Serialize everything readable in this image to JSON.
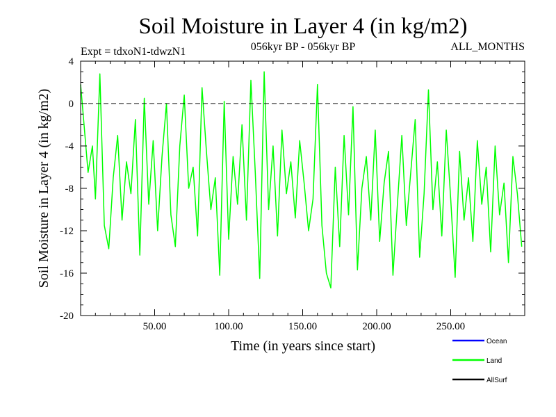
{
  "chart_data": {
    "type": "line",
    "title": "Soil Moisture in Layer 4 (in kg/m2)",
    "subtitle_left": "Expt = tdxoN1-tdwzN1",
    "subtitle_center": "056kyr BP - 056kyr BP",
    "subtitle_right": "ALL_MONTHS",
    "xlabel": "Time (in years since start)",
    "ylabel": "Soil Moisture in Layer 4 (in kg/m2)",
    "xlim": [
      0,
      300
    ],
    "ylim": [
      -20,
      4
    ],
    "x_ticks": [
      50,
      100,
      150,
      200,
      250
    ],
    "x_tick_labels": [
      "50.00",
      "100.00",
      "150.00",
      "200.00",
      "250.00"
    ],
    "y_ticks": [
      4,
      0,
      -4,
      -8,
      -12,
      -16,
      -20
    ],
    "y_tick_labels": [
      "4",
      "0",
      "-4",
      "-8",
      "-12",
      "-16",
      "-20"
    ],
    "reference_line": 0,
    "series": [
      {
        "name": "Ocean",
        "color": "#0000ff",
        "values": []
      },
      {
        "name": "Land",
        "color": "#00ff00",
        "x": [
          0,
          2,
          5,
          8,
          10,
          13,
          16,
          19,
          22,
          25,
          28,
          31,
          34,
          37,
          40,
          43,
          46,
          49,
          52,
          55,
          58,
          61,
          64,
          67,
          70,
          73,
          76,
          79,
          82,
          85,
          88,
          91,
          94,
          97,
          100,
          103,
          106,
          109,
          112,
          115,
          118,
          121,
          124,
          127,
          130,
          133,
          136,
          139,
          142,
          145,
          148,
          151,
          154,
          157,
          160,
          163,
          166,
          169,
          172,
          175,
          178,
          181,
          184,
          187,
          190,
          193,
          196,
          199,
          202,
          205,
          208,
          211,
          214,
          217,
          220,
          223,
          226,
          229,
          232,
          235,
          238,
          241,
          244,
          247,
          250,
          253,
          256,
          259,
          262,
          265,
          268,
          271,
          274,
          277,
          280,
          283,
          286,
          289,
          292,
          295,
          298
        ],
        "values": [
          1.8,
          -1.5,
          -6.5,
          -4.0,
          -9.0,
          2.8,
          -11.5,
          -13.7,
          -7.0,
          -3.0,
          -11.0,
          -5.5,
          -8.5,
          -1.5,
          -14.3,
          0.5,
          -9.5,
          -3.5,
          -12.0,
          -5.0,
          0.0,
          -10.5,
          -13.5,
          -4.0,
          0.8,
          -8.0,
          -6.0,
          -12.5,
          1.5,
          -4.5,
          -10.0,
          -7.0,
          -16.2,
          0.2,
          -12.8,
          -5.0,
          -9.5,
          -2.0,
          -11.0,
          2.2,
          -6.5,
          -16.5,
          3.0,
          -10.0,
          -4.0,
          -12.5,
          -2.5,
          -8.5,
          -5.5,
          -10.8,
          -3.5,
          -7.5,
          -12.0,
          -9.0,
          1.8,
          -11.5,
          -16.0,
          -17.4,
          -6.0,
          -13.5,
          -3.0,
          -10.5,
          -0.3,
          -15.7,
          -8.0,
          -5.0,
          -11.0,
          -2.5,
          -13.0,
          -7.5,
          -4.5,
          -16.2,
          -9.5,
          -3.0,
          -11.5,
          -6.5,
          -1.5,
          -14.5,
          -8.5,
          1.3,
          -10.0,
          -5.5,
          -12.5,
          -2.5,
          -9.0,
          -16.4,
          -4.5,
          -11.0,
          -7.0,
          -13.0,
          -3.5,
          -9.5,
          -6.0,
          -14.0,
          -4.0,
          -10.5,
          -7.5,
          -15.0,
          -5.0,
          -8.5,
          -13.5
        ]
      },
      {
        "name": "AllSurf",
        "color": "#000000",
        "values": []
      }
    ],
    "legend_position": "bottom-right",
    "grid": false
  }
}
